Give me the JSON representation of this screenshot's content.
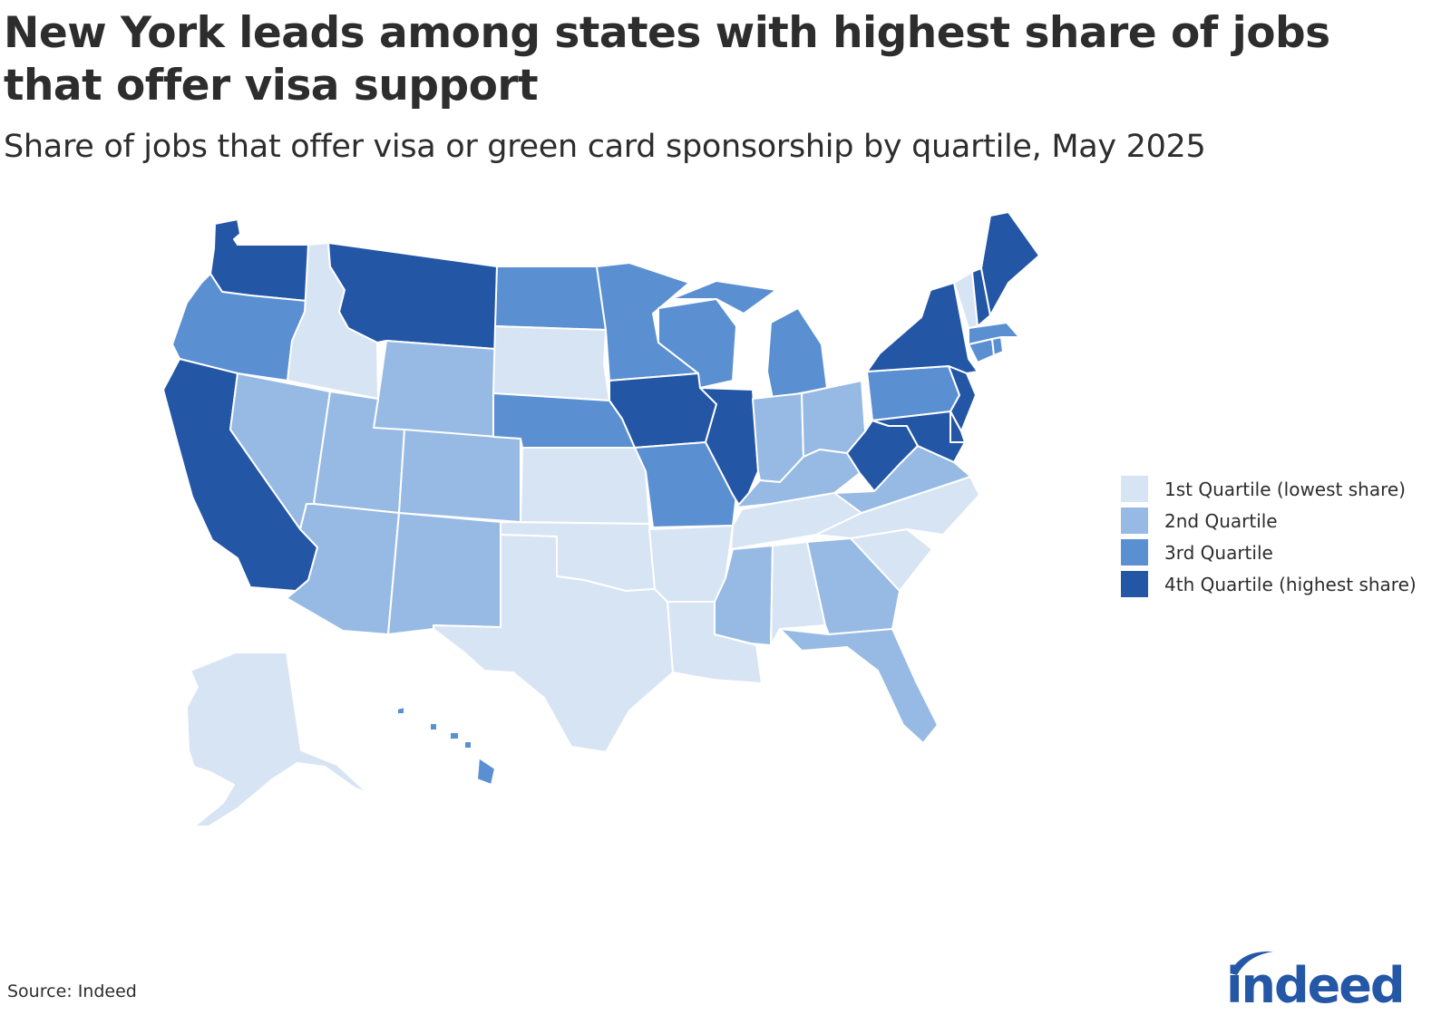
{
  "title": "New York leads among states with highest share of jobs that offer visa support",
  "subtitle": "Share of jobs that offer visa or green card sponsorship by quartile, May 2025",
  "source": "Source: Indeed",
  "logo_text": "indeed",
  "colors": {
    "q1": "#d7e4f4",
    "q2": "#96bae3",
    "q3": "#5a8fd2",
    "q4": "#2456a6",
    "logo": "#2557a7"
  },
  "legend": [
    {
      "label": "1st Quartile (lowest share)",
      "quartile": 1
    },
    {
      "label": "2nd Quartile",
      "quartile": 2
    },
    {
      "label": "3rd Quartile",
      "quartile": 3
    },
    {
      "label": "4th Quartile (highest share)",
      "quartile": 4
    }
  ],
  "chart_data": {
    "type": "choropleth",
    "measure": "Share of jobs that offer visa or green card sponsorship, quartile",
    "period": "May 2025",
    "quartiles": {
      "WA": 4,
      "OR": 3,
      "CA": 4,
      "ID": 1,
      "NV": 2,
      "MT": 4,
      "WY": 2,
      "UT": 2,
      "AZ": 2,
      "CO": 2,
      "NM": 2,
      "ND": 3,
      "SD": 1,
      "NE": 3,
      "KS": 1,
      "OK": 1,
      "TX": 1,
      "MN": 3,
      "IA": 4,
      "MO": 3,
      "AR": 1,
      "LA": 1,
      "WI": 3,
      "IL": 4,
      "MI": 3,
      "IN": 2,
      "OH": 2,
      "KY": 2,
      "TN": 1,
      "MS": 2,
      "AL": 1,
      "GA": 2,
      "FL": 2,
      "SC": 1,
      "NC": 1,
      "VA": 2,
      "WV": 4,
      "PA": 3,
      "NY": 4,
      "NJ": 4,
      "DE": 4,
      "MD": 4,
      "CT": 3,
      "RI": 3,
      "MA": 3,
      "VT": 1,
      "NH": 4,
      "ME": 4,
      "AK": 1,
      "HI": 3
    }
  }
}
